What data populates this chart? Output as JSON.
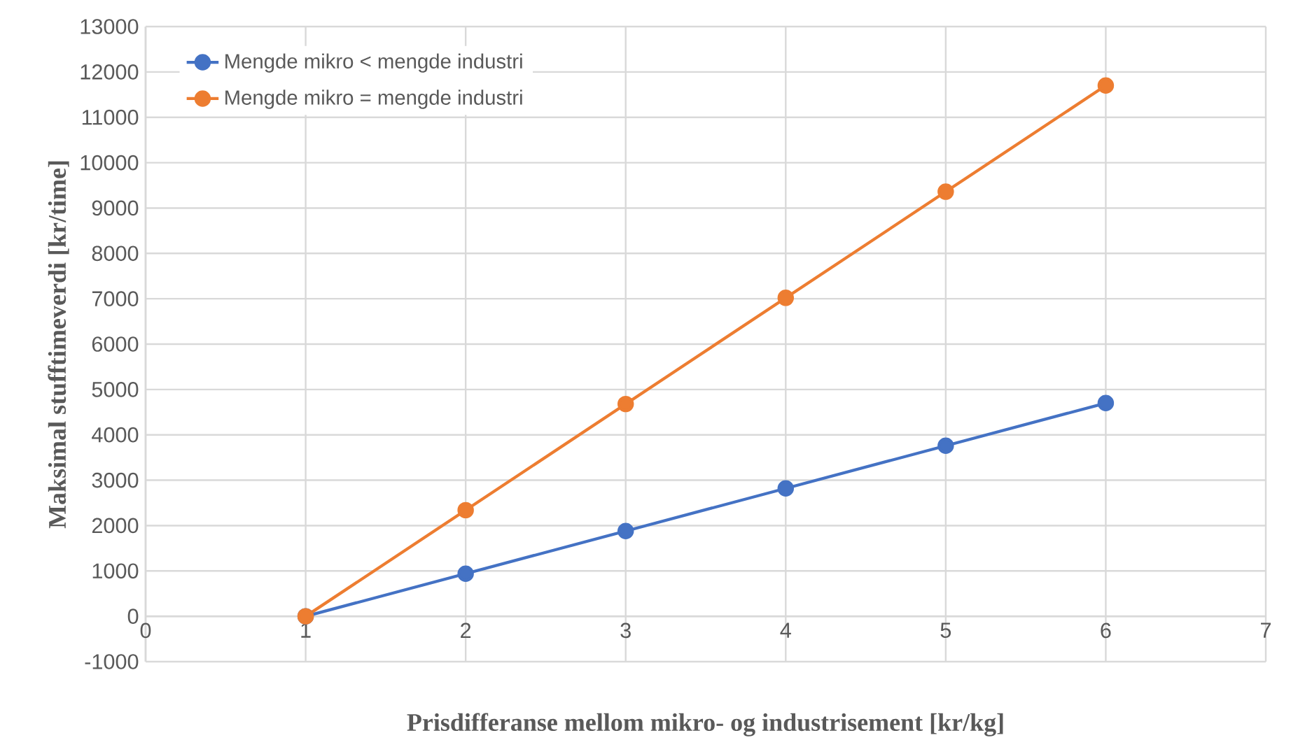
{
  "chart_data": {
    "type": "line",
    "xlabel": "Prisdifferanse mellom mikro- og industrisement [kr/kg]",
    "ylabel": "Maksimal stufftimeverdi [kr/time]",
    "x": [
      1,
      2,
      3,
      4,
      5,
      6
    ],
    "series": [
      {
        "name": "Mengde mikro < mengde industri",
        "color": "#4472c4",
        "values": [
          0,
          940,
          1880,
          2820,
          3760,
          4700
        ]
      },
      {
        "name": "Mengde mikro = mengde industri",
        "color": "#ed7d31",
        "values": [
          0,
          2340,
          4680,
          7020,
          9360,
          11700
        ]
      }
    ],
    "xlim": [
      0,
      7
    ],
    "xticks": [
      0,
      1,
      2,
      3,
      4,
      5,
      6,
      7
    ],
    "ylim": [
      -1000,
      13000
    ],
    "yticks": [
      -1000,
      0,
      1000,
      2000,
      3000,
      4000,
      5000,
      6000,
      7000,
      8000,
      9000,
      10000,
      11000,
      12000,
      13000
    ],
    "grid": true,
    "legend": "top left",
    "marker": "circle",
    "line_style": "solid"
  }
}
